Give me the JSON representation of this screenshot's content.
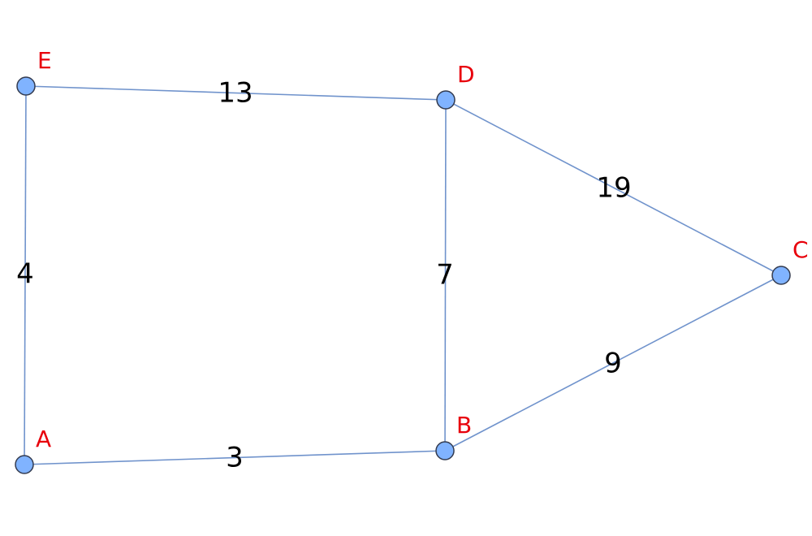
{
  "colors": {
    "node_fill": "#80b3ff",
    "edge": "#7093cc",
    "node_label": "#e8000b",
    "weight_label": "#000000"
  },
  "nodes": [
    {
      "id": "A",
      "label": "A"
    },
    {
      "id": "B",
      "label": "B"
    },
    {
      "id": "C",
      "label": "C"
    },
    {
      "id": "D",
      "label": "D"
    },
    {
      "id": "E",
      "label": "E"
    }
  ],
  "edges": [
    {
      "from": "E",
      "to": "D",
      "weight": "13"
    },
    {
      "from": "D",
      "to": "C",
      "weight": "19"
    },
    {
      "from": "D",
      "to": "B",
      "weight": "7"
    },
    {
      "from": "E",
      "to": "A",
      "weight": "4"
    },
    {
      "from": "A",
      "to": "B",
      "weight": "3"
    },
    {
      "from": "B",
      "to": "C",
      "weight": "9"
    }
  ]
}
